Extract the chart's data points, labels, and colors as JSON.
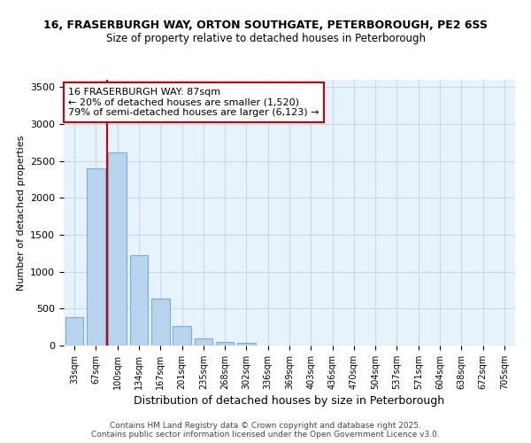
{
  "title_line1": "16, FRASERBURGH WAY, ORTON SOUTHGATE, PETERBOROUGH, PE2 6SS",
  "title_line2": "Size of property relative to detached houses in Peterborough",
  "xlabel": "Distribution of detached houses by size in Peterborough",
  "ylabel": "Number of detached properties",
  "categories": [
    "33sqm",
    "67sqm",
    "100sqm",
    "134sqm",
    "167sqm",
    "201sqm",
    "235sqm",
    "268sqm",
    "302sqm",
    "336sqm",
    "369sqm",
    "403sqm",
    "436sqm",
    "470sqm",
    "504sqm",
    "537sqm",
    "571sqm",
    "604sqm",
    "638sqm",
    "672sqm",
    "705sqm"
  ],
  "values": [
    390,
    2400,
    2620,
    1230,
    640,
    260,
    100,
    50,
    40,
    0,
    0,
    0,
    0,
    0,
    0,
    0,
    0,
    0,
    0,
    0,
    0
  ],
  "bar_color": "#b8d4ee",
  "bar_edge_color": "#7aafd4",
  "red_line_index": 1.5,
  "annotation_text_line1": "16 FRASERBURGH WAY: 87sqm",
  "annotation_text_line2": "← 20% of detached houses are smaller (1,520)",
  "annotation_text_line3": "79% of semi-detached houses are larger (6,123) →",
  "annotation_box_color": "#ffffff",
  "annotation_box_edge": "#cc0000",
  "ylim": [
    0,
    3600
  ],
  "yticks": [
    0,
    500,
    1000,
    1500,
    2000,
    2500,
    3000,
    3500
  ],
  "background_color": "#e8f2fb",
  "grid_color": "#c8d8e8",
  "footer_line1": "Contains HM Land Registry data © Crown copyright and database right 2025.",
  "footer_line2": "Contains public sector information licensed under the Open Government Licence v3.0."
}
